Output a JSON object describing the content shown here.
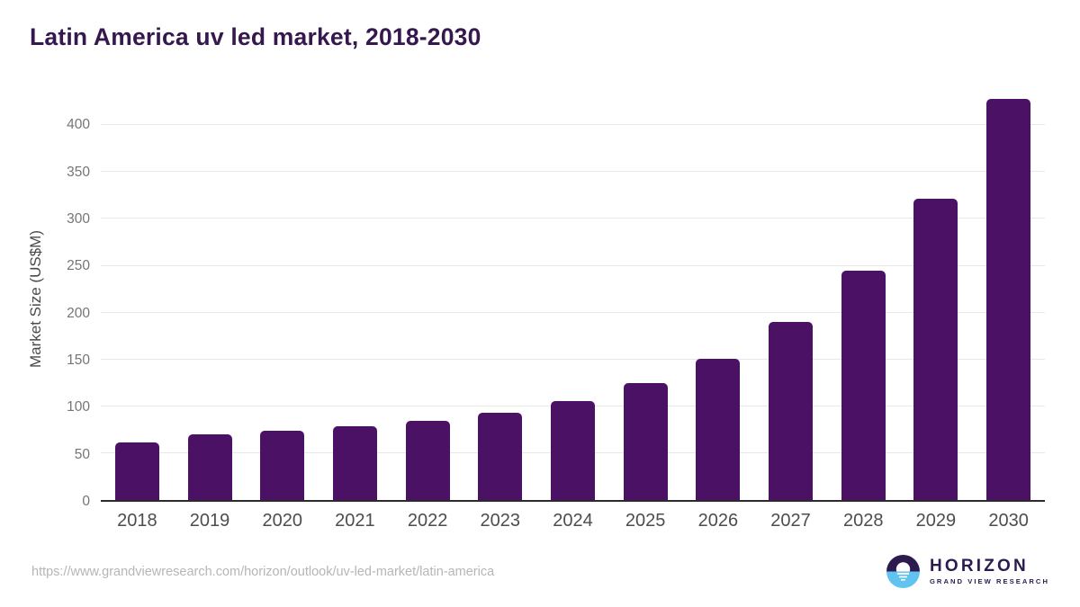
{
  "header": {
    "title": "Latin America uv led market, 2018-2030"
  },
  "chart_data": {
    "type": "bar",
    "title": "Latin America uv led market, 2018-2030",
    "categories": [
      "2018",
      "2019",
      "2020",
      "2021",
      "2022",
      "2023",
      "2024",
      "2025",
      "2026",
      "2027",
      "2028",
      "2029",
      "2030"
    ],
    "values": [
      61,
      70,
      74,
      79,
      84,
      93,
      106,
      125,
      151,
      190,
      245,
      322,
      428
    ],
    "xlabel": "",
    "ylabel": "Market Size (US$M)",
    "ylim": [
      0,
      430
    ],
    "yticks": [
      0,
      50,
      100,
      150,
      200,
      250,
      300,
      350,
      400
    ],
    "grid": "horizontal",
    "legend": "none",
    "bar_color": "#4a1164"
  },
  "footer": {
    "source_url": "https://www.grandviewresearch.com/horizon/outlook/uv-led-market/latin-america",
    "logo": {
      "name": "HORIZON",
      "tagline": "GRAND VIEW RESEARCH"
    }
  },
  "colors": {
    "title": "#35184e",
    "bar": "#4a1164",
    "gridline": "#e8e8e8",
    "axis_line": "#2b2b2b",
    "ytick_label": "#757575",
    "xtick_label": "#4d4d4d",
    "url_text": "#b6b6b6",
    "logo_purple": "#2b1b4e",
    "logo_blue": "#62c3f0"
  }
}
